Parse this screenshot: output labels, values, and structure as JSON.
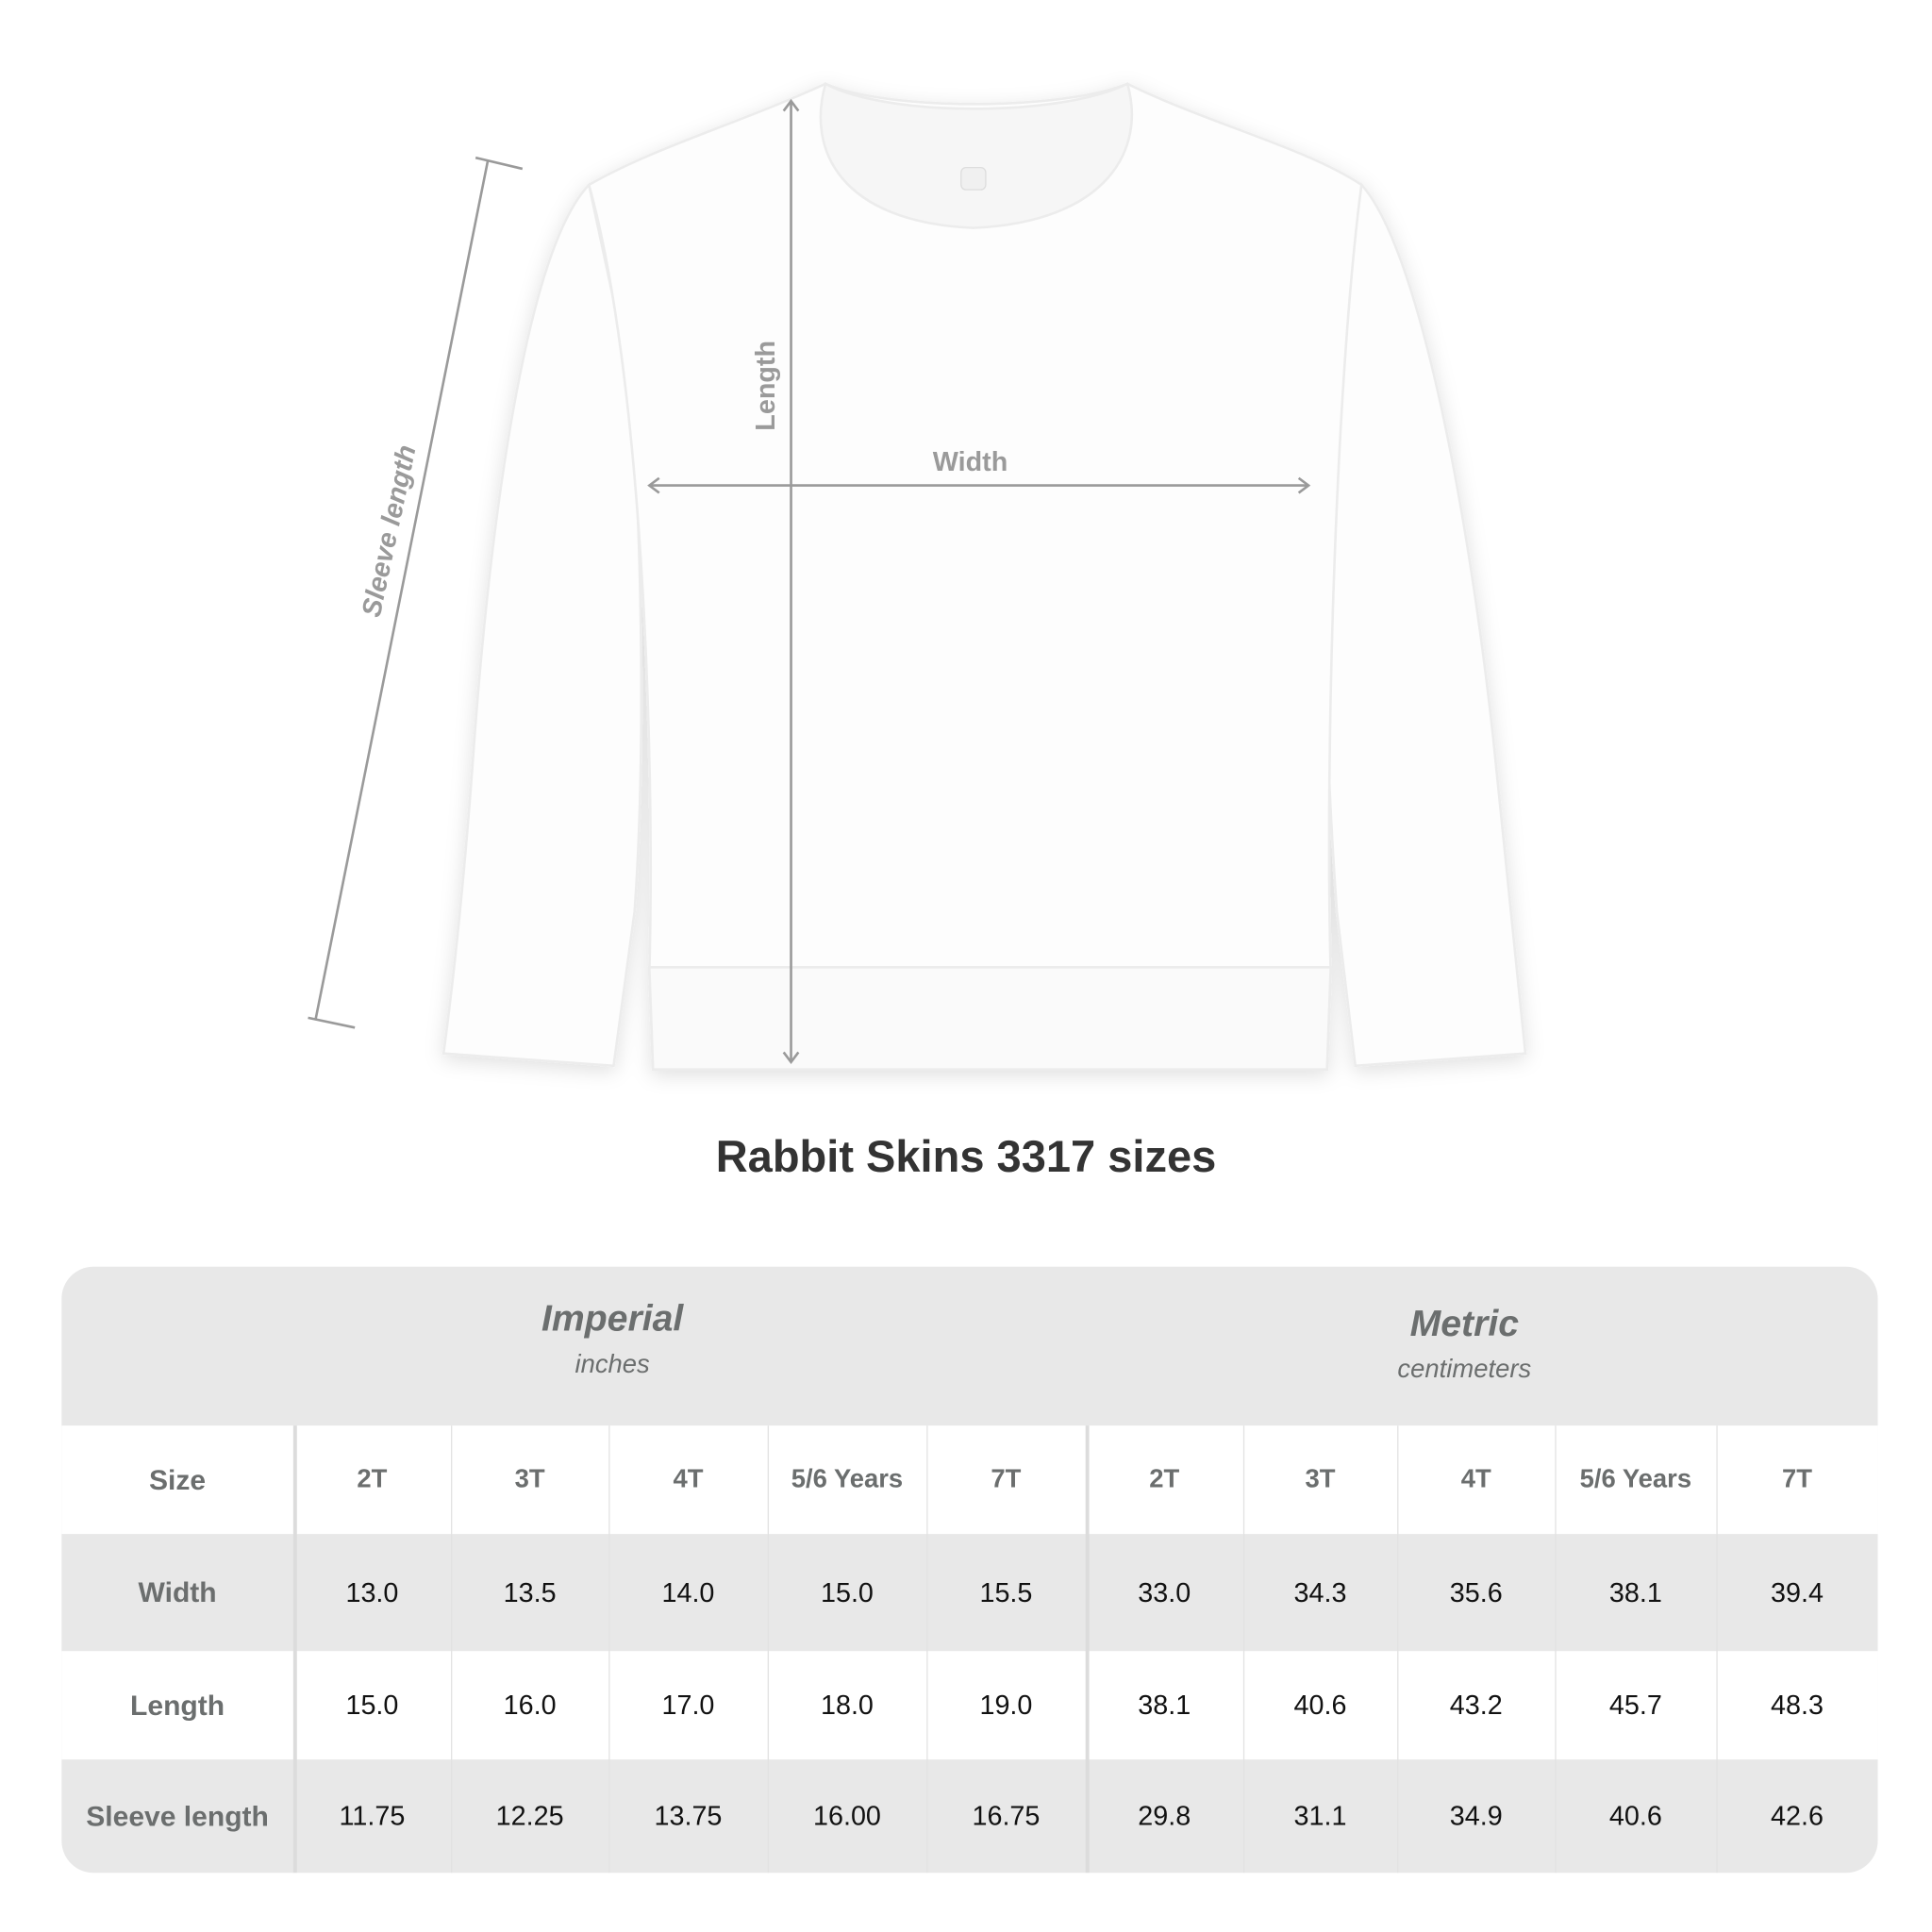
{
  "garment": {
    "measure_labels": {
      "length": "Length",
      "width": "Width",
      "sleeve": "Sleeve length"
    },
    "color": "#ffffff",
    "arrow_color": "#9a9a9a"
  },
  "title": "Rabbit Skins 3317 sizes",
  "table": {
    "systems": [
      {
        "name": "Imperial",
        "unit": "inches"
      },
      {
        "name": "Metric",
        "unit": "centimeters"
      }
    ],
    "size_label": "Size",
    "sizes": [
      "2T",
      "3T",
      "4T",
      "5/6 Years",
      "7T",
      "2T",
      "3T",
      "4T",
      "5/6 Years",
      "7T"
    ],
    "rows": [
      {
        "label": "Width",
        "values": [
          "13.0",
          "13.5",
          "14.0",
          "15.0",
          "15.5",
          "33.0",
          "34.3",
          "35.6",
          "38.1",
          "39.4"
        ]
      },
      {
        "label": "Length",
        "values": [
          "15.0",
          "16.0",
          "17.0",
          "18.0",
          "19.0",
          "38.1",
          "40.6",
          "43.2",
          "45.7",
          "48.3"
        ]
      },
      {
        "label": "Sleeve length",
        "values": [
          "11.75",
          "12.25",
          "13.75",
          "16.00",
          "16.75",
          "29.8",
          "31.1",
          "34.9",
          "40.6",
          "42.6"
        ]
      }
    ]
  }
}
